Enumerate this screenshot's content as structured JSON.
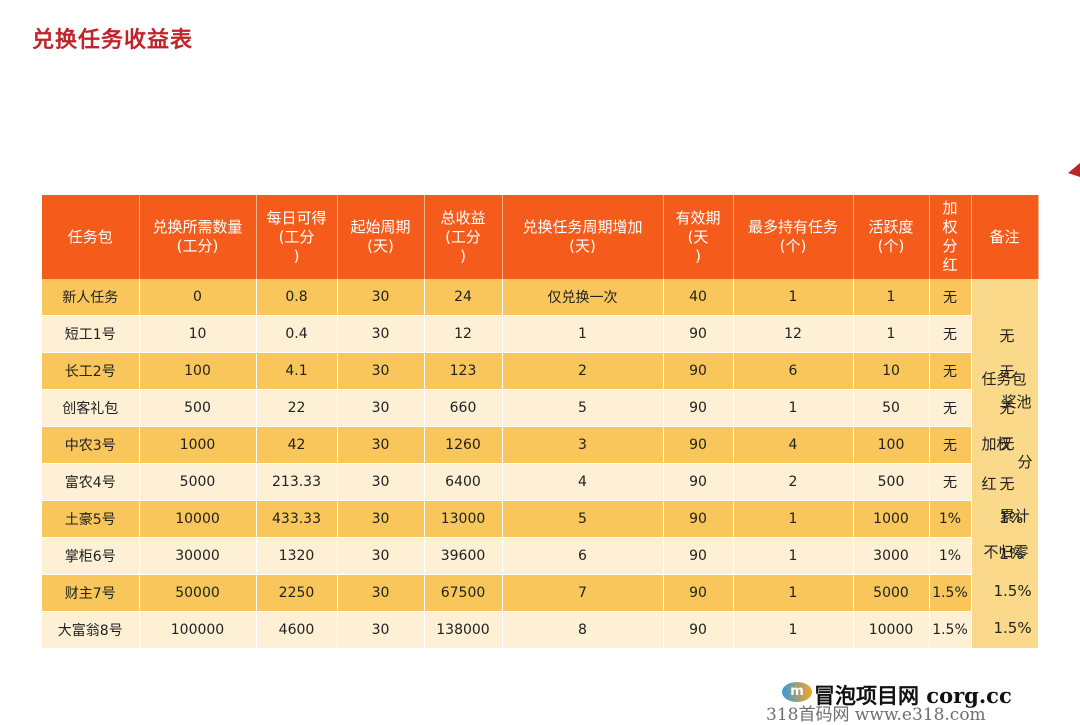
{
  "page": {
    "title": "兑换任务收益表"
  },
  "colors": {
    "header_bg": "#f55c1c",
    "row_dark": "#f8c65a",
    "row_light": "#fdf0d4",
    "title_color": "#c0242a"
  },
  "table": {
    "headers": [
      "任务包",
      "兑换所需数量\n(工分)",
      "每日可得\n(工分\n)",
      "起始周期\n(天)",
      "总收益\n(工分\n)",
      "兑换任务周期增加\n(天)",
      "有效期\n(天\n)",
      "最多持有任务\n(个)",
      "活跃度\n(个)",
      "加\n权\n分\n红",
      "备注"
    ],
    "rows": [
      [
        "新人任务",
        "0",
        "0.8",
        "30",
        "24",
        "仅兑换一次",
        "40",
        "1",
        "1",
        "无"
      ],
      [
        "短工1号",
        "10",
        "0.4",
        "30",
        "12",
        "1",
        "90",
        "12",
        "1",
        "无"
      ],
      [
        "长工2号",
        "100",
        "4.1",
        "30",
        "123",
        "2",
        "90",
        "6",
        "10",
        "无"
      ],
      [
        "创客礼包",
        "500",
        "22",
        "30",
        "660",
        "5",
        "90",
        "1",
        "50",
        "无"
      ],
      [
        "中农3号",
        "1000",
        "42",
        "30",
        "1260",
        "3",
        "90",
        "4",
        "100",
        "无"
      ],
      [
        "富农4号",
        "5000",
        "213.33",
        "30",
        "6400",
        "4",
        "90",
        "2",
        "500",
        "无"
      ],
      [
        "土豪5号",
        "10000",
        "433.33",
        "30",
        "13000",
        "5",
        "90",
        "1",
        "1000",
        "1%"
      ],
      [
        "掌柜6号",
        "30000",
        "1320",
        "30",
        "39600",
        "6",
        "90",
        "1",
        "3000",
        "1%"
      ],
      [
        "财主7号",
        "50000",
        "2250",
        "30",
        "67500",
        "7",
        "90",
        "1",
        "5000",
        "1.5%"
      ],
      [
        "大富翁8号",
        "100000",
        "4600",
        "30",
        "138000",
        "8",
        "90",
        "1",
        "10000",
        "1.5%"
      ]
    ],
    "notes": [
      {
        "text": "无"
      },
      {
        "text": "无"
      },
      {
        "text": "任务包"
      },
      {
        "text": "奖池"
      },
      {
        "text": "无"
      },
      {
        "text": "加权"
      },
      {
        "text": "无"
      },
      {
        "text": "分"
      },
      {
        "text": "红"
      },
      {
        "text": "无"
      },
      {
        "text": "累计"
      },
      {
        "text": "1%"
      },
      {
        "text": "不归零"
      },
      {
        "text": "1%"
      },
      {
        "text": "1.5%"
      },
      {
        "text": "1.5%"
      }
    ]
  },
  "watermark": {
    "logo": "m",
    "line1": "冒泡项目网 corg.cc",
    "line2": "318首码网 www.e318.com"
  }
}
